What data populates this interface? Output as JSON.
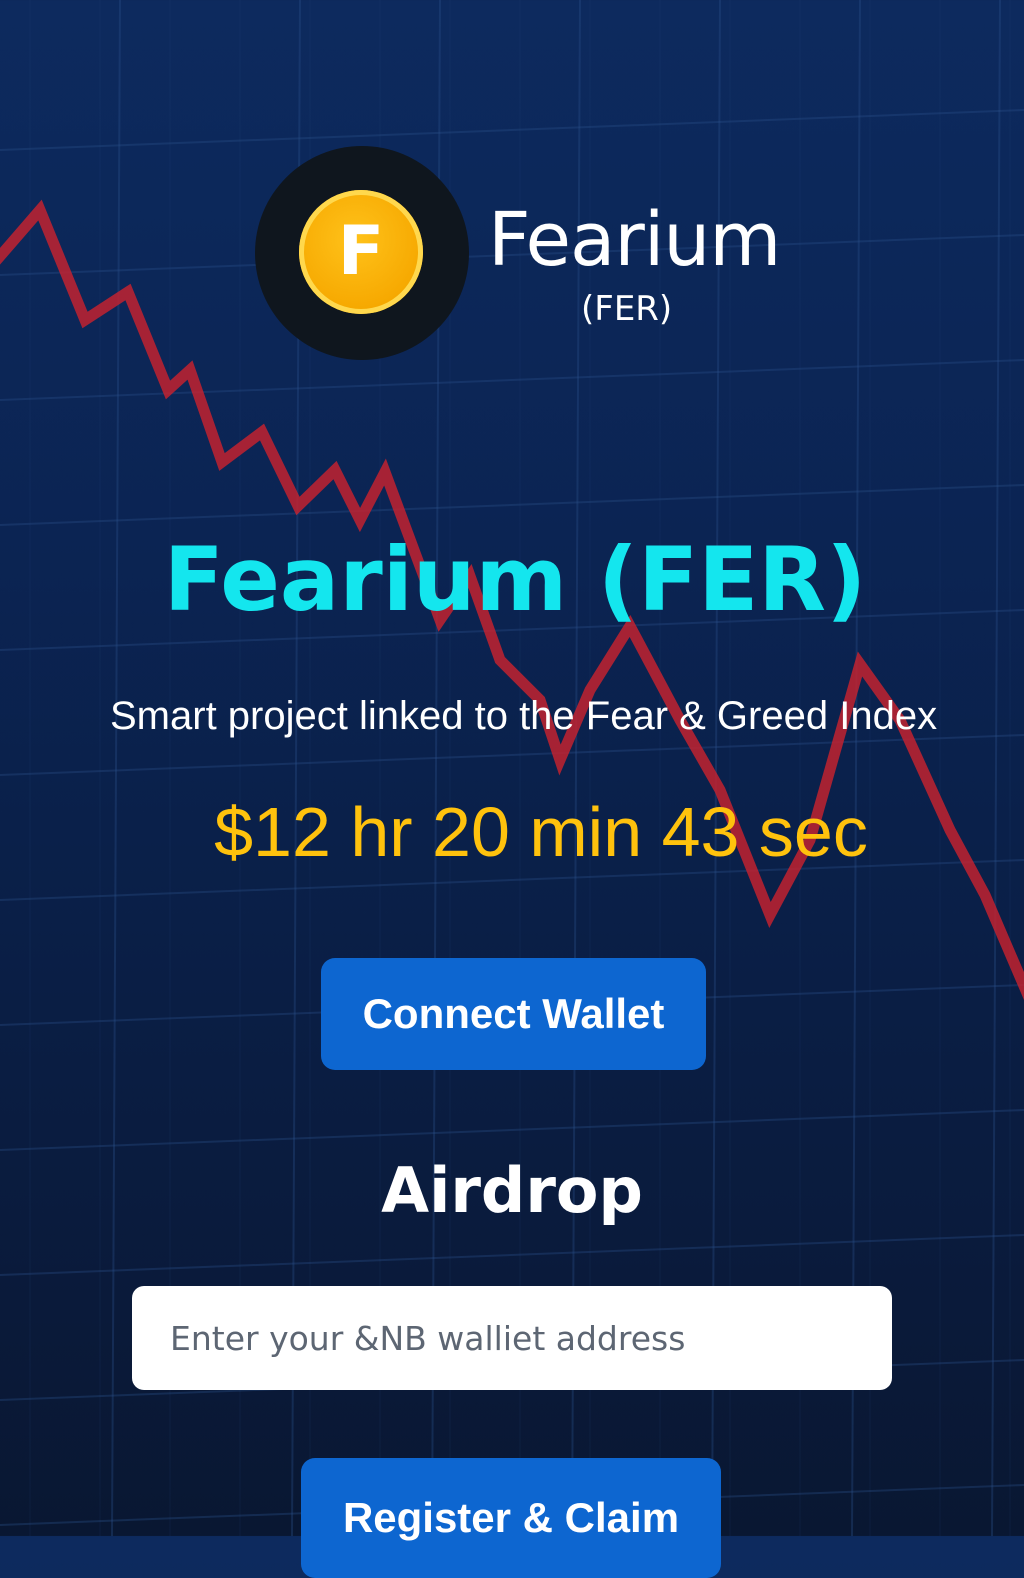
{
  "brand": {
    "logo_letter": "F",
    "name": "Fearium",
    "ticker": "(FER)"
  },
  "hero": {
    "headline": "Fearium (FER)",
    "tagline": "Smart project linked to the Fear & Greed Index",
    "countdown": "$12 hr 20 min 43 sec"
  },
  "actions": {
    "connect_wallet_label": "Connect Wallet"
  },
  "airdrop": {
    "heading": "Airdrop",
    "wallet_placeholder": "Enter your &NB walliet address",
    "register_label": "Register & Claim"
  },
  "colors": {
    "background": "#0b2453",
    "accent_cyan": "#14e6ee",
    "countdown_yellow": "#ffc20d",
    "button_blue": "#0d66d0",
    "trend_line_red": "#c8222e",
    "coin_gold": "#f6a800"
  },
  "icons": {
    "logo": "fearium-coin-icon",
    "background": "falling-price-chart"
  }
}
